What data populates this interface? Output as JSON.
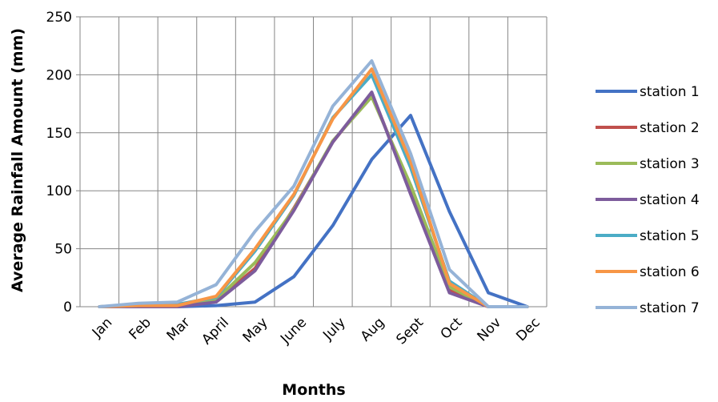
{
  "chart_data": {
    "type": "line",
    "title": "",
    "xlabel": "Months",
    "ylabel": "Average Rainfall Amount (mm)",
    "ylim": [
      0,
      250
    ],
    "yticks": [
      "0",
      "50",
      "100",
      "150",
      "200",
      "250"
    ],
    "grid": true,
    "legend_position": "right",
    "categories": [
      "Jan",
      "Feb",
      "Mar",
      "April",
      "May",
      "June",
      "July",
      "Aug",
      "Sept",
      "Oct",
      "Nov",
      "Dec"
    ],
    "series": [
      {
        "name": "station 1",
        "color": "#4472c4",
        "values": [
          0,
          0,
          0,
          1,
          4,
          26,
          70,
          127,
          165,
          82,
          12,
          0
        ]
      },
      {
        "name": "station 2",
        "color": "#c0504d",
        "values": [
          0,
          0,
          1,
          5,
          33,
          85,
          142,
          184,
          100,
          14,
          0,
          0
        ]
      },
      {
        "name": "station 3",
        "color": "#9bbb59",
        "values": [
          0,
          1,
          1,
          6,
          38,
          84,
          143,
          181,
          105,
          17,
          0,
          0
        ]
      },
      {
        "name": "station 4",
        "color": "#7d5c9c",
        "values": [
          0,
          0,
          0,
          4,
          31,
          83,
          142,
          185,
          97,
          12,
          0,
          0
        ]
      },
      {
        "name": "station 5",
        "color": "#4bacc6",
        "values": [
          0,
          1,
          2,
          8,
          48,
          96,
          163,
          200,
          120,
          22,
          0,
          0
        ]
      },
      {
        "name": "station 6",
        "color": "#f79646",
        "values": [
          0,
          1,
          1,
          9,
          50,
          97,
          162,
          205,
          125,
          20,
          0,
          0
        ]
      },
      {
        "name": "station 7",
        "color": "#95b3d7",
        "values": [
          0,
          3,
          4,
          19,
          65,
          104,
          173,
          212,
          132,
          32,
          0,
          0
        ]
      }
    ]
  }
}
